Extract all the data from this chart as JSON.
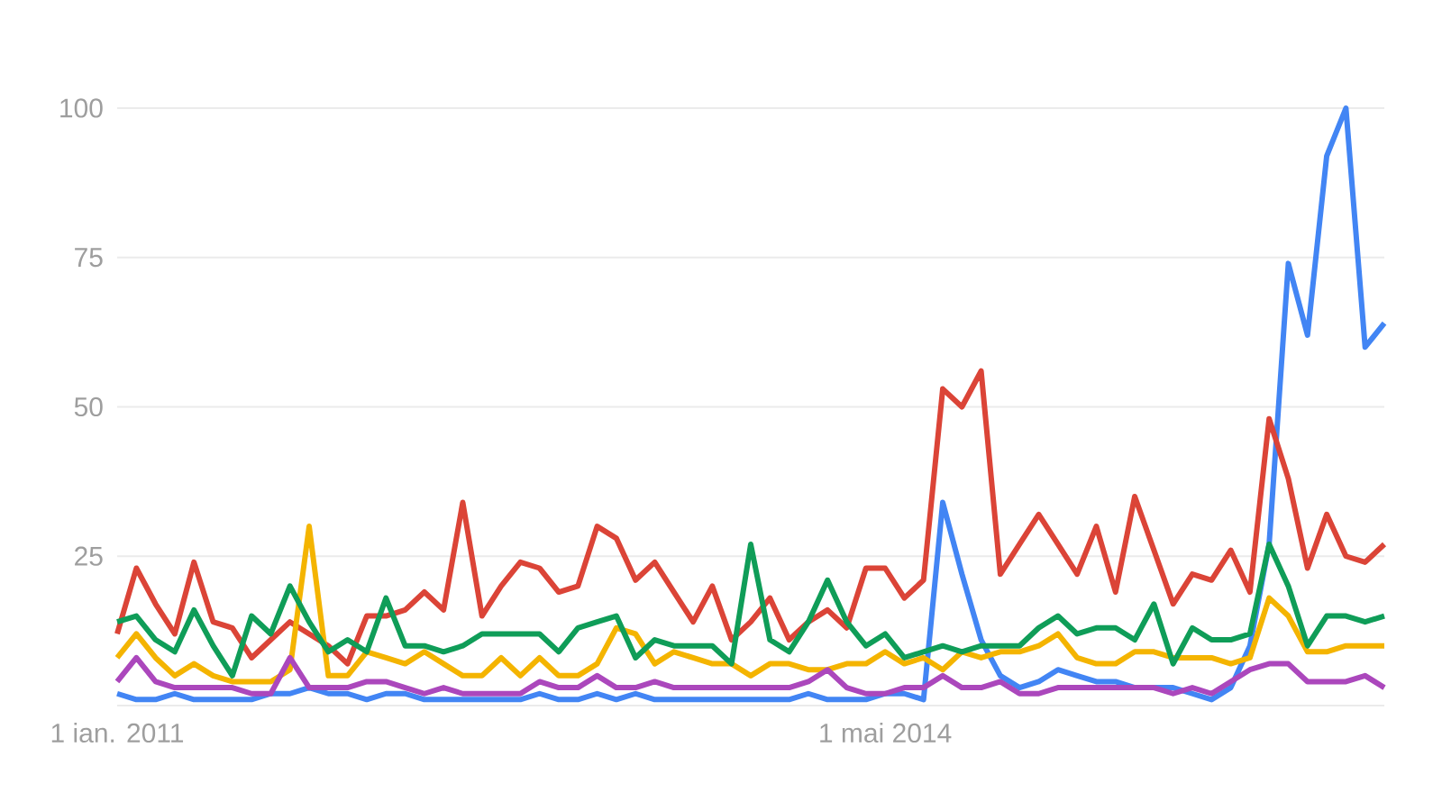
{
  "chart_data": {
    "type": "line",
    "x": [
      "2011-01",
      "2011-02",
      "2011-03",
      "2011-04",
      "2011-05",
      "2011-06",
      "2011-07",
      "2011-08",
      "2011-09",
      "2011-10",
      "2011-11",
      "2011-12",
      "2012-01",
      "2012-02",
      "2012-03",
      "2012-04",
      "2012-05",
      "2012-06",
      "2012-07",
      "2012-08",
      "2012-09",
      "2012-10",
      "2012-11",
      "2012-12",
      "2013-01",
      "2013-02",
      "2013-03",
      "2013-04",
      "2013-05",
      "2013-06",
      "2013-07",
      "2013-08",
      "2013-09",
      "2013-10",
      "2013-11",
      "2013-12",
      "2014-01",
      "2014-02",
      "2014-03",
      "2014-04",
      "2014-05",
      "2014-06",
      "2014-07",
      "2014-08",
      "2014-09",
      "2014-10",
      "2014-11",
      "2014-12",
      "2015-01",
      "2015-02",
      "2015-03",
      "2015-04",
      "2015-05",
      "2015-06",
      "2015-07",
      "2015-08",
      "2015-09",
      "2015-10",
      "2015-11",
      "2015-12",
      "2016-01",
      "2016-02",
      "2016-03",
      "2016-04",
      "2016-05",
      "2016-06",
      "2016-07"
    ],
    "series": [
      {
        "color": "#4285f4",
        "values": [
          2,
          1,
          1,
          2,
          1,
          1,
          1,
          1,
          2,
          2,
          3,
          2,
          2,
          1,
          2,
          2,
          1,
          1,
          1,
          1,
          1,
          1,
          2,
          1,
          1,
          2,
          1,
          2,
          1,
          1,
          1,
          1,
          1,
          1,
          1,
          1,
          2,
          1,
          1,
          1,
          2,
          2,
          1,
          34,
          22,
          11,
          5,
          3,
          4,
          6,
          5,
          4,
          4,
          3,
          3,
          3,
          2,
          1,
          3,
          10,
          27,
          74,
          62,
          92,
          100,
          60,
          64
        ]
      },
      {
        "color": "#db4437",
        "values": [
          12,
          23,
          17,
          12,
          24,
          14,
          13,
          8,
          11,
          14,
          12,
          10,
          7,
          15,
          15,
          16,
          19,
          16,
          34,
          15,
          20,
          24,
          23,
          19,
          20,
          30,
          28,
          21,
          24,
          19,
          14,
          20,
          11,
          14,
          18,
          11,
          14,
          16,
          13,
          23,
          23,
          18,
          21,
          53,
          50,
          56,
          22,
          27,
          32,
          27,
          22,
          30,
          19,
          35,
          26,
          17,
          22,
          21,
          26,
          19,
          48,
          38,
          23,
          32,
          25,
          24,
          27
        ]
      },
      {
        "color": "#f4b400",
        "values": [
          8,
          12,
          8,
          5,
          7,
          5,
          4,
          4,
          4,
          6,
          30,
          5,
          5,
          9,
          8,
          7,
          9,
          7,
          5,
          5,
          8,
          5,
          8,
          5,
          5,
          7,
          13,
          12,
          7,
          9,
          8,
          7,
          7,
          5,
          7,
          7,
          6,
          6,
          7,
          7,
          9,
          7,
          8,
          6,
          9,
          8,
          9,
          9,
          10,
          12,
          8,
          7,
          7,
          9,
          9,
          8,
          8,
          8,
          7,
          8,
          18,
          15,
          9,
          9,
          10,
          10,
          10
        ]
      },
      {
        "color": "#0f9d58",
        "values": [
          14,
          15,
          11,
          9,
          16,
          10,
          5,
          15,
          12,
          20,
          14,
          9,
          11,
          9,
          18,
          10,
          10,
          9,
          10,
          12,
          12,
          12,
          12,
          9,
          13,
          14,
          15,
          8,
          11,
          10,
          10,
          10,
          7,
          27,
          11,
          9,
          14,
          21,
          14,
          10,
          12,
          8,
          9,
          10,
          9,
          10,
          10,
          10,
          13,
          15,
          12,
          13,
          13,
          11,
          17,
          7,
          13,
          11,
          11,
          12,
          27,
          20,
          10,
          15,
          15,
          14,
          15
        ]
      },
      {
        "color": "#ab47bc",
        "values": [
          4,
          8,
          4,
          3,
          3,
          3,
          3,
          2,
          2,
          8,
          3,
          3,
          3,
          4,
          4,
          3,
          2,
          3,
          2,
          2,
          2,
          2,
          4,
          3,
          3,
          5,
          3,
          3,
          4,
          3,
          3,
          3,
          3,
          3,
          3,
          3,
          4,
          6,
          3,
          2,
          2,
          3,
          3,
          5,
          3,
          3,
          4,
          2,
          2,
          3,
          3,
          3,
          3,
          3,
          3,
          2,
          3,
          2,
          4,
          6,
          7,
          7,
          4,
          4,
          4,
          5,
          3
        ]
      }
    ],
    "xlim": [
      "2011-01",
      "2016-07"
    ],
    "xticks": [
      {
        "value": "2011-01-01",
        "label": "1 ian. 2011"
      },
      {
        "value": "2014-05-01",
        "label": "1 mai 2014"
      }
    ],
    "ylim": [
      0,
      100
    ],
    "yticks": [
      {
        "value": 0,
        "label": null
      },
      25,
      50,
      75,
      100
    ],
    "grid": "y",
    "legend": false,
    "marker": "none",
    "line_style": "solid"
  }
}
